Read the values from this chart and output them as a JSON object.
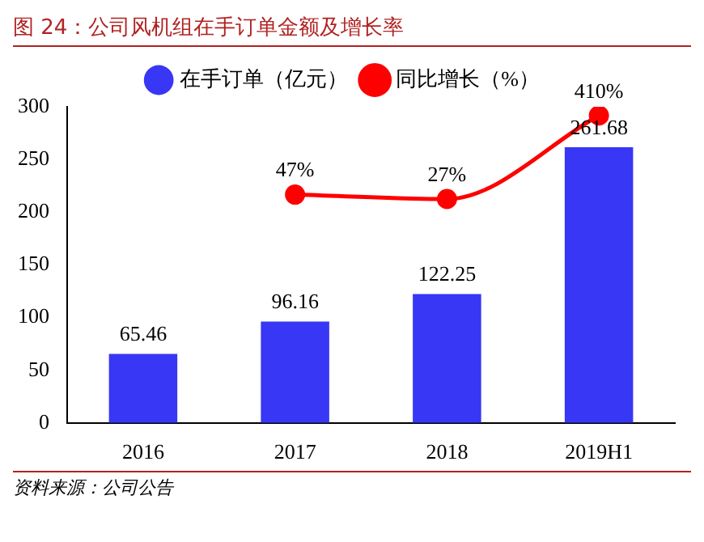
{
  "chart_data": {
    "type": "bar",
    "title": "图 24：公司风机组在手订单金额及增长率",
    "annotations": [
      "资料来源：公司公告"
    ],
    "categories": [
      "2016",
      "2017",
      "2018",
      "2019H1"
    ],
    "series": [
      {
        "name": "在手订单（亿元）",
        "color": "#3737f5",
        "values": [
          65.46,
          96.16,
          122.25,
          261.68
        ]
      },
      {
        "name": "同比增长（%）",
        "type": "line",
        "axis": "y2",
        "color": "#ff0000",
        "marker": "circle",
        "values": [
          null,
          47,
          27,
          410
        ],
        "value_labels": [
          null,
          "47%",
          "27%",
          "410%"
        ]
      }
    ],
    "ylim": [
      0,
      300
    ],
    "yticks": [
      0,
      50,
      100,
      150,
      200,
      250,
      300
    ],
    "y2lim": [
      -1000,
      450
    ],
    "data_labels": true,
    "grid": false,
    "legend": "top"
  }
}
